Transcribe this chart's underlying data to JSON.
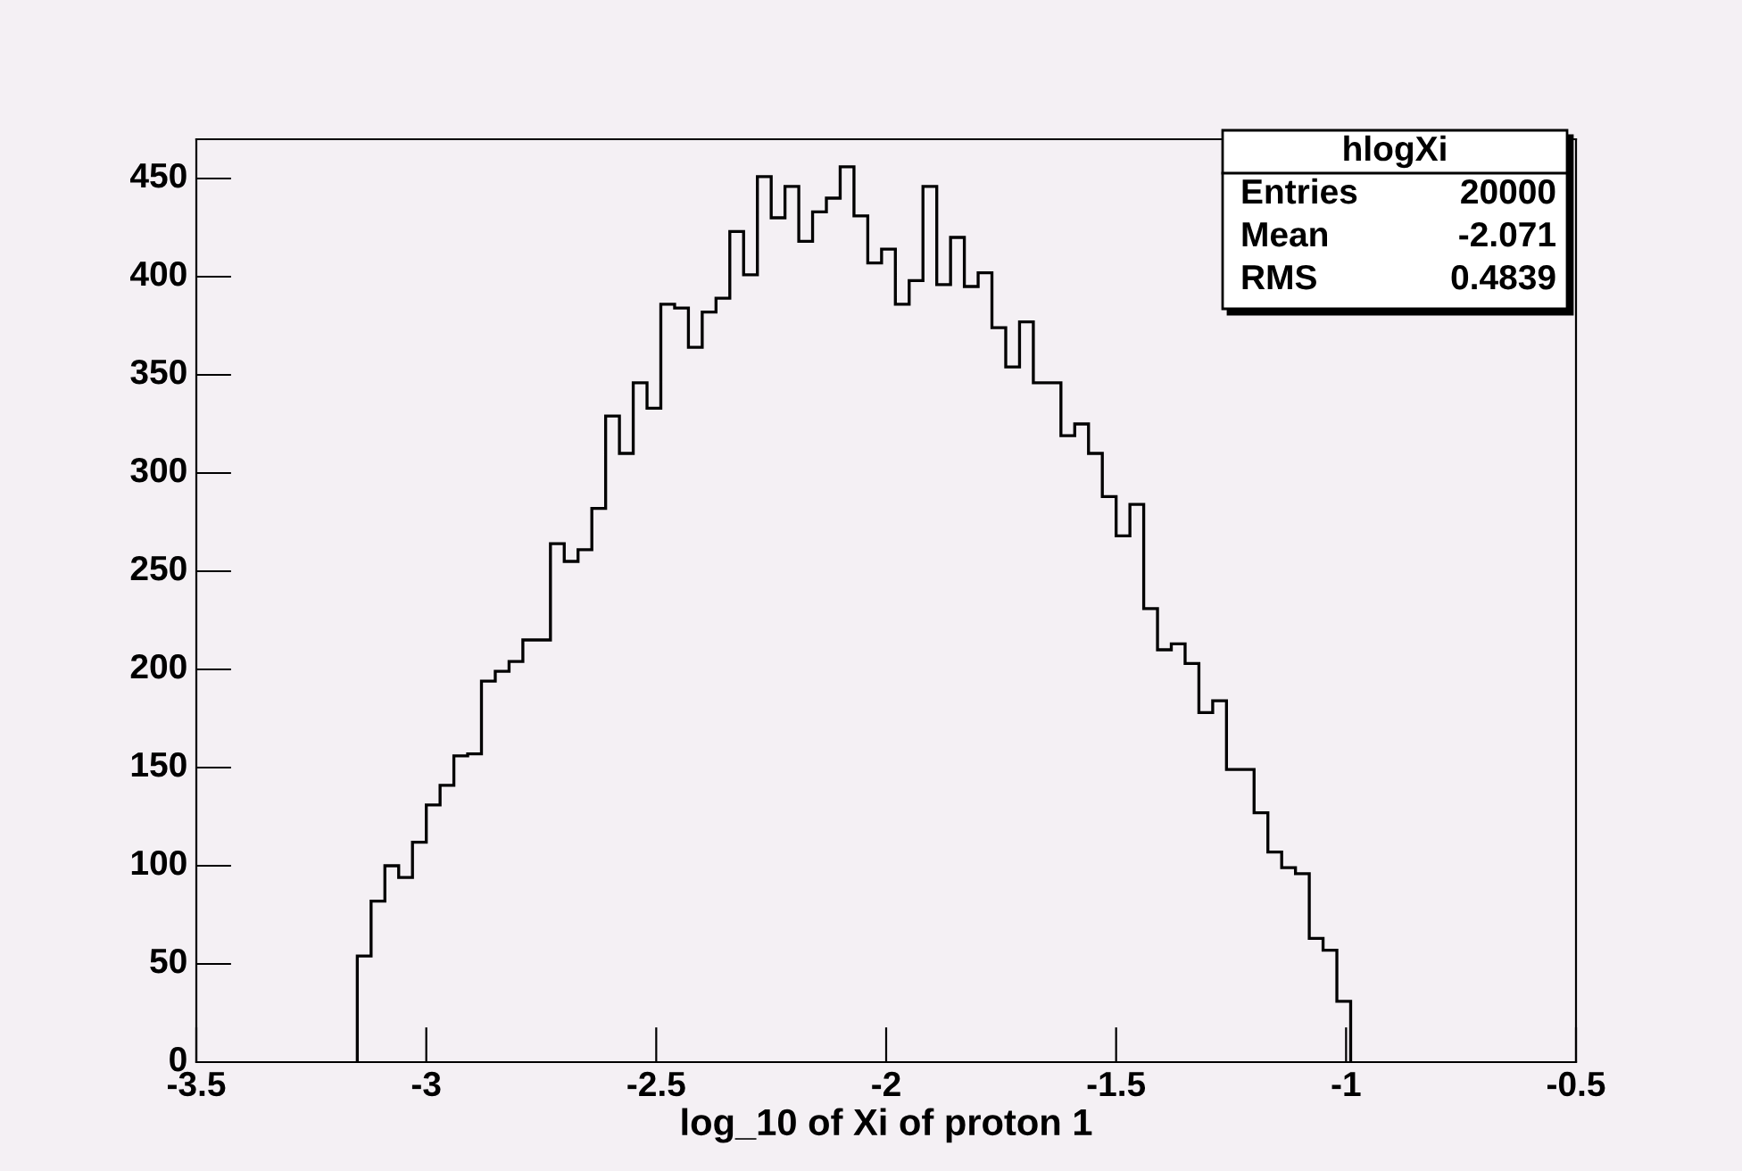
{
  "chart_data": {
    "type": "histogram",
    "xlabel": "log_10 of Xi of proton 1",
    "bins": [
      -3.15,
      -3.12,
      -3.09,
      -3.06,
      -3.03,
      -3.0,
      -2.97,
      -2.94,
      -2.91,
      -2.88,
      -2.85,
      -2.82,
      -2.79,
      -2.76,
      -2.73,
      -2.7,
      -2.67,
      -2.64,
      -2.61,
      -2.58,
      -2.55,
      -2.52,
      -2.49,
      -2.46,
      -2.43,
      -2.4,
      -2.37,
      -2.34,
      -2.31,
      -2.28,
      -2.25,
      -2.22,
      -2.19,
      -2.16,
      -2.13,
      -2.1,
      -2.07,
      -2.04,
      -2.01,
      -1.98,
      -1.95,
      -1.92,
      -1.89,
      -1.86,
      -1.83,
      -1.8,
      -1.77,
      -1.74,
      -1.71,
      -1.68,
      -1.65,
      -1.62,
      -1.59,
      -1.56,
      -1.53,
      -1.5,
      -1.47,
      -1.44,
      -1.41,
      -1.38,
      -1.35,
      -1.32,
      -1.29,
      -1.26,
      -1.23,
      -1.2,
      -1.17,
      -1.14,
      -1.11,
      -1.08,
      -1.05,
      -1.02,
      -0.99
    ],
    "values": [
      54,
      82,
      100,
      94,
      112,
      131,
      141,
      156,
      157,
      194,
      199,
      204,
      215,
      215,
      264,
      255,
      261,
      282,
      329,
      310,
      346,
      333,
      386,
      384,
      364,
      382,
      389,
      423,
      401,
      451,
      430,
      446,
      418,
      433,
      440,
      456,
      431,
      407,
      414,
      386,
      398,
      446,
      396,
      420,
      395,
      402,
      374,
      354,
      377,
      346,
      346,
      319,
      325,
      310,
      288,
      268,
      284,
      231,
      210,
      213,
      203,
      178,
      184,
      149,
      149,
      127,
      107,
      99,
      96,
      63,
      57,
      31
    ],
    "color": "#000000",
    "xlim": [
      -3.5,
      -0.5
    ],
    "xticks": [
      -3.5,
      -3,
      -2.5,
      -2,
      -1.5,
      -1,
      -0.5
    ],
    "ylim": [
      0,
      470
    ],
    "yticks": [
      0,
      50,
      100,
      150,
      200,
      250,
      300,
      350,
      400,
      450
    ],
    "grid": false,
    "legend": false,
    "annotations": [
      "hlogXi",
      "Entries",
      "20000",
      "Mean",
      "-2.071",
      "RMS",
      "0.4839"
    ]
  }
}
